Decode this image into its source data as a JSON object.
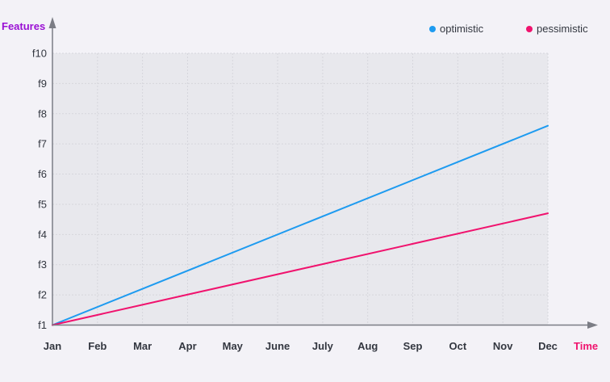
{
  "chart_data": {
    "type": "line",
    "xlabel": "Time",
    "ylabel": "Features",
    "categories": [
      "Jan",
      "Feb",
      "Mar",
      "Apr",
      "May",
      "June",
      "July",
      "Aug",
      "Sep",
      "Oct",
      "Nov",
      "Dec"
    ],
    "y_categories": [
      "f1",
      "f2",
      "f3",
      "f4",
      "f5",
      "f6",
      "f7",
      "f8",
      "f9",
      "f10"
    ],
    "series": [
      {
        "name": "optimistic",
        "color": "#1e9bf0",
        "start": {
          "x": "Jan",
          "y": 1
        },
        "end": {
          "x": "Dec",
          "y": 7.6
        }
      },
      {
        "name": "pessimistic",
        "color": "#f0136e",
        "start": {
          "x": "Jan",
          "y": 1
        },
        "end": {
          "x": "Dec",
          "y": 4.7
        }
      }
    ],
    "ylim": [
      1,
      10
    ],
    "grid": true,
    "legend_position": "top-right",
    "colors": {
      "ylabel": "#9a10d4",
      "xlabel": "#f0136e",
      "axis": "#7b7d85",
      "plot_background": "#e8e8ed",
      "grid": "#d6d6dc"
    }
  }
}
